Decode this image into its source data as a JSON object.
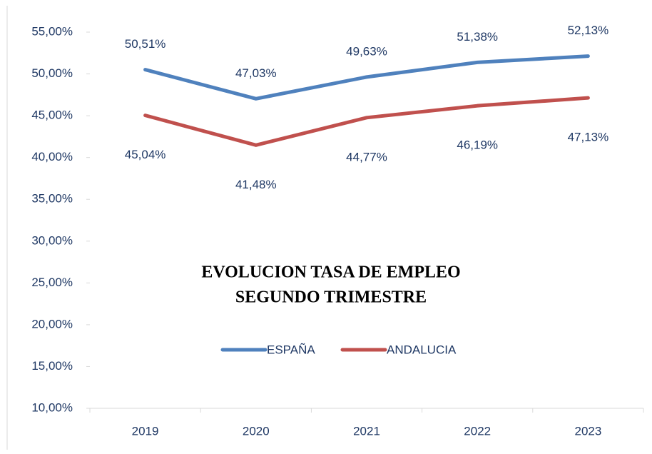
{
  "chart_data": {
    "type": "line",
    "title": [
      "EVOLUCION TASA DE EMPLEO",
      "SEGUNDO TRIMESTRE"
    ],
    "categories": [
      "2019",
      "2020",
      "2021",
      "2022",
      "2023"
    ],
    "series": [
      {
        "name": "ESPAÑA",
        "color": "#4f81bd",
        "label_position": "above",
        "values": [
          50.51,
          47.03,
          49.63,
          51.38,
          52.13
        ],
        "value_labels": [
          "50,51%",
          "47,03%",
          "49,63%",
          "51,38%",
          "52,13%"
        ]
      },
      {
        "name": "ANDALUCIA",
        "color": "#c0504d",
        "label_position": "below",
        "values": [
          45.04,
          41.48,
          44.77,
          46.19,
          47.13
        ],
        "value_labels": [
          "45,04%",
          "41,48%",
          "44,77%",
          "46,19%",
          "47,13%"
        ]
      }
    ],
    "ylim": [
      10,
      55
    ],
    "yticks": [
      {
        "value": 10,
        "label": "10,00%"
      },
      {
        "value": 15,
        "label": "15,00%"
      },
      {
        "value": 20,
        "label": "20,00%"
      },
      {
        "value": 25,
        "label": "25,00%"
      },
      {
        "value": 30,
        "label": "30,00%"
      },
      {
        "value": 35,
        "label": "35,00%"
      },
      {
        "value": 40,
        "label": "40,00%"
      },
      {
        "value": 45,
        "label": "45,00%"
      },
      {
        "value": 50,
        "label": "50,00%"
      },
      {
        "value": 55,
        "label": "55,00%"
      }
    ],
    "grid": false,
    "legend": "center"
  }
}
